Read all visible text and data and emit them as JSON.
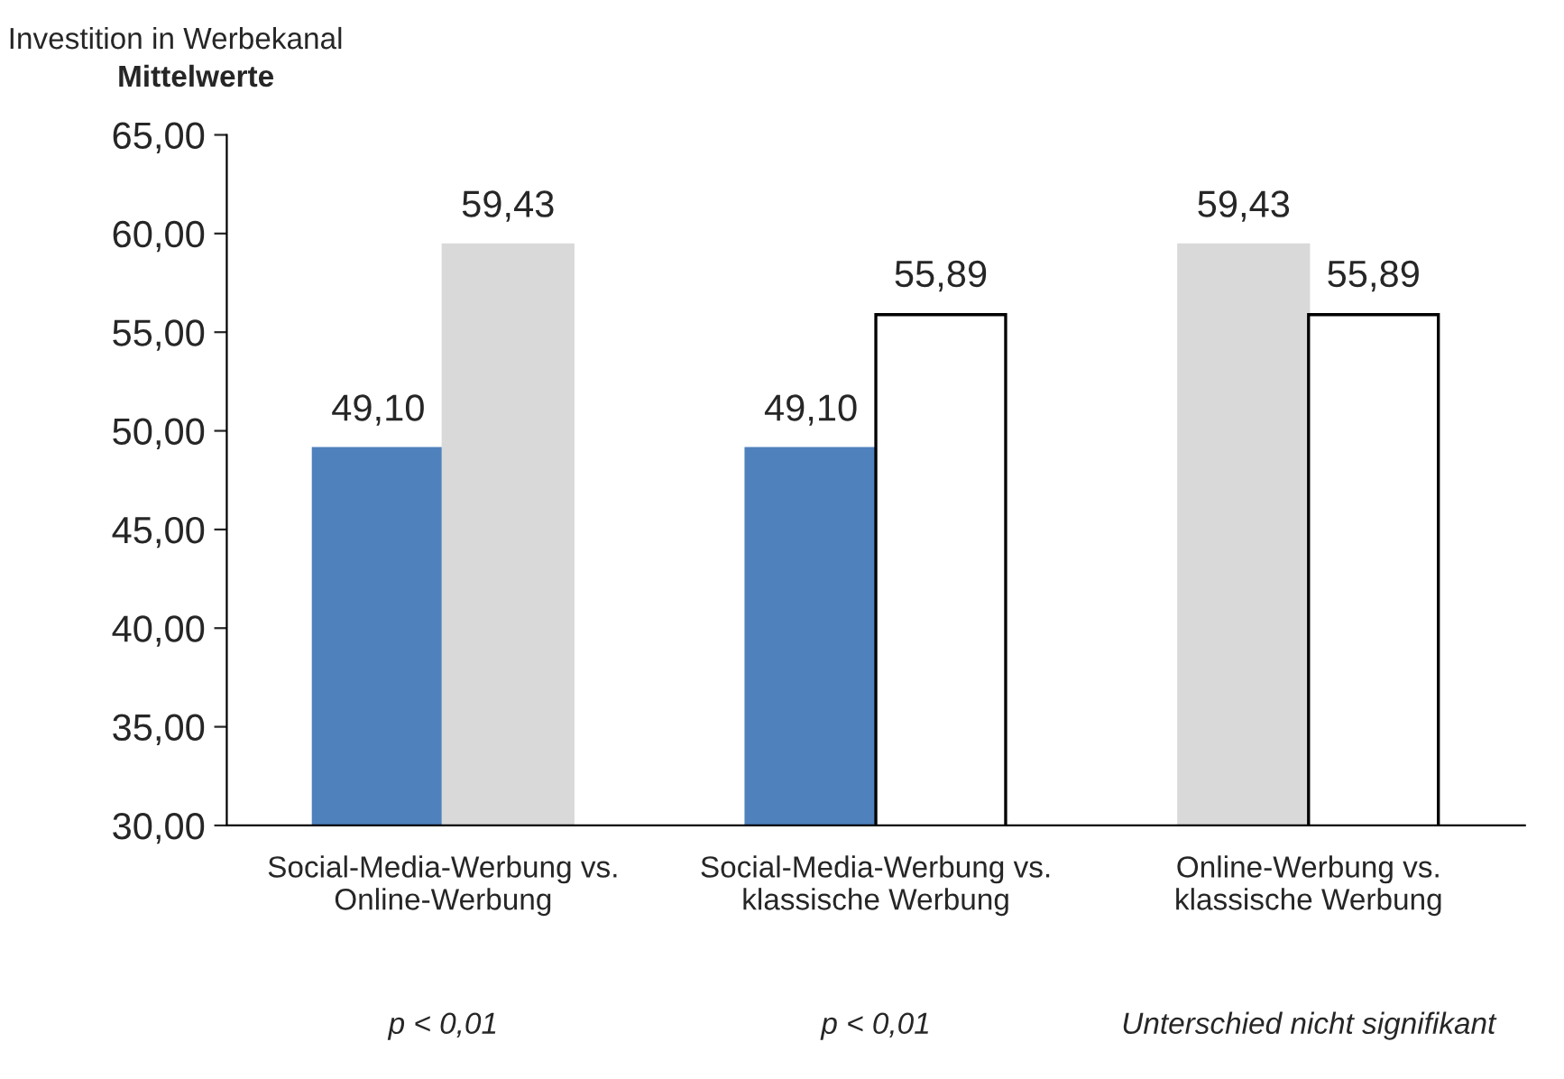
{
  "chart_data": {
    "type": "bar",
    "title": "Investition in Werbekanal",
    "subtitle": "Mittelwerte",
    "categories": [
      "Social-Media-Werbung vs.\nOnline-Werbung",
      "Social-Media-Werbung vs.\nklassische Werbung",
      "Online-Werbung vs.\nklassische Werbung"
    ],
    "series": [
      {
        "values": [
          49.1,
          49.1,
          59.43
        ],
        "colors": [
          "#4f81bd",
          "#4f81bd",
          "#d9d9d9"
        ],
        "value_labels": [
          "49,10",
          "49,10",
          "59,43"
        ]
      },
      {
        "values": [
          59.43,
          55.89,
          55.89
        ],
        "colors": [
          "#d9d9d9",
          "#ffffff",
          "#ffffff"
        ],
        "value_labels": [
          "59,43",
          "55,89",
          "55,89"
        ]
      }
    ],
    "ylim": [
      30,
      65
    ],
    "yticks": [
      {
        "value": 30,
        "label": "30,00"
      },
      {
        "value": 35,
        "label": "35,00"
      },
      {
        "value": 40,
        "label": "40,00"
      },
      {
        "value": 45,
        "label": "45,00"
      },
      {
        "value": 50,
        "label": "50,00"
      },
      {
        "value": 55,
        "label": "55,00"
      },
      {
        "value": 60,
        "label": "60,00"
      },
      {
        "value": 65,
        "label": "65,00"
      }
    ],
    "grid": false,
    "legend": false,
    "annotations": [
      "p < 0,01",
      "p < 0,01",
      "Unterschied nicht signifikant"
    ]
  }
}
